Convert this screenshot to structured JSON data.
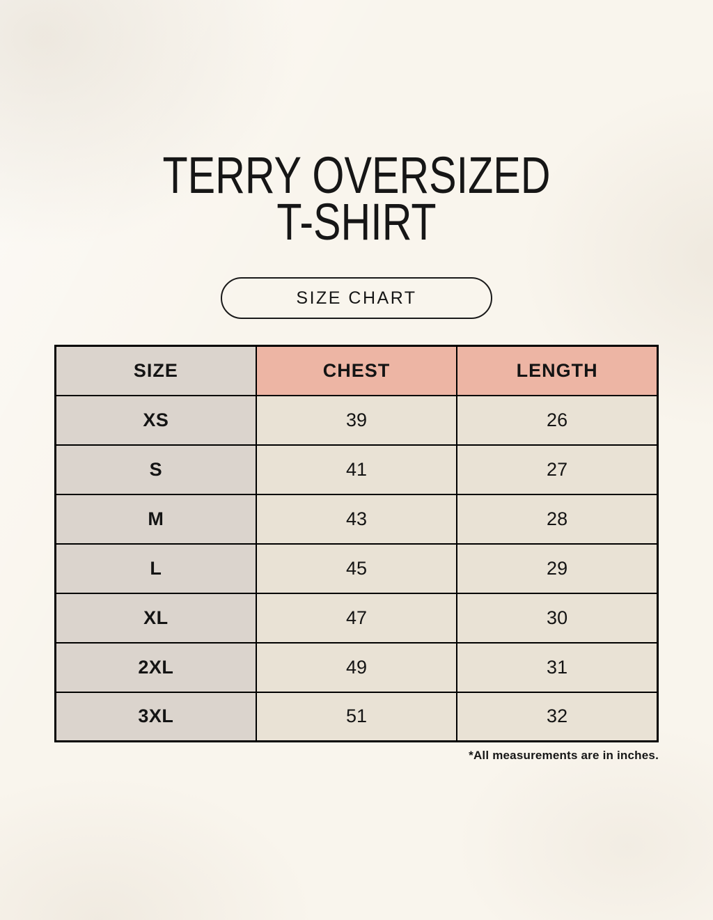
{
  "page": {
    "title_line1": "TERRY OVERSIZED",
    "title_line2": "T-SHIRT",
    "size_chart_button_label": "SIZE CHART",
    "footnote": "*All measurements are in inches."
  },
  "table": {
    "headers": [
      "SIZE",
      "CHEST",
      "LENGTH"
    ],
    "rows": [
      {
        "size": "XS",
        "chest": "39",
        "length": "26"
      },
      {
        "size": "S",
        "chest": "41",
        "length": "27"
      },
      {
        "size": "M",
        "chest": "43",
        "length": "28"
      },
      {
        "size": "L",
        "chest": "45",
        "length": "29"
      },
      {
        "size": "XL",
        "chest": "47",
        "length": "30"
      },
      {
        "size": "2XL",
        "chest": "49",
        "length": "31"
      },
      {
        "size": "3XL",
        "chest": "51",
        "length": "32"
      }
    ],
    "units": "inches"
  },
  "colors": {
    "page_background": "#f9f5ed",
    "size_column_background": "#dbd4cd",
    "measure_header_background": "#edb5a4",
    "data_cell_background": "#e9e2d5",
    "border": "#000000",
    "text": "#161616"
  }
}
